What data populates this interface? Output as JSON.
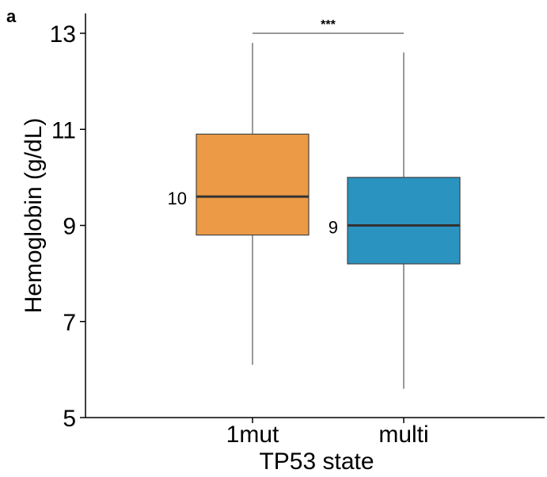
{
  "panel_label": "a",
  "chart_data": {
    "type": "box",
    "title": "",
    "xlabel": "TP53 state",
    "ylabel": "Hemoglobin (g/dL)",
    "ylim": [
      5,
      13.4
    ],
    "y_ticks": [
      5,
      7,
      9,
      11,
      13
    ],
    "grid": false,
    "categories": [
      "1mut",
      "multi"
    ],
    "series": [
      {
        "category": "1mut",
        "color": "#EC9A45",
        "whisker_low": 6.1,
        "q1": 8.8,
        "median": 9.6,
        "q3": 10.9,
        "whisker_high": 12.8,
        "label": "10"
      },
      {
        "category": "multi",
        "color": "#2A93C0",
        "whisker_low": 5.6,
        "q1": 8.2,
        "median": 9.0,
        "q3": 10.0,
        "whisker_high": 12.6,
        "label": "9"
      }
    ],
    "annotations": [
      {
        "type": "significance",
        "between": [
          "1mut",
          "multi"
        ],
        "y": 13.0,
        "text": "***"
      }
    ]
  }
}
